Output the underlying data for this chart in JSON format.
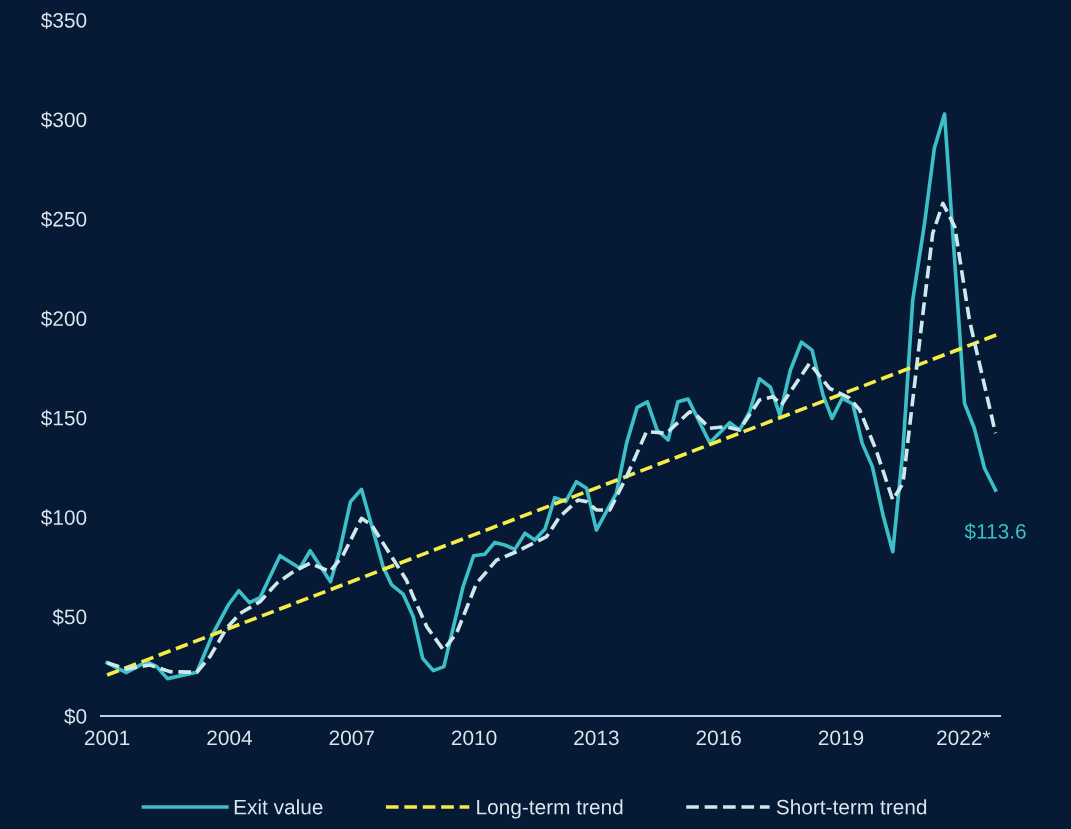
{
  "chart_data": {
    "type": "line",
    "xlim": [
      2000.85,
      2022.9
    ],
    "ylim": [
      0,
      350
    ],
    "xticks": [
      2001,
      2004,
      2007,
      2010,
      2013,
      2016,
      2019,
      {
        "value": 2022,
        "label": "2022*"
      }
    ],
    "yticks": [
      {
        "value": 0,
        "label": "$0"
      },
      {
        "value": 50,
        "label": "$50"
      },
      {
        "value": 100,
        "label": "$100"
      },
      {
        "value": 150,
        "label": "$150"
      },
      {
        "value": 200,
        "label": "$200"
      },
      {
        "value": 250,
        "label": "$250"
      },
      {
        "value": 300,
        "label": "$300"
      },
      {
        "value": 350,
        "label": "$350"
      }
    ],
    "grid": false,
    "legend": "bottom",
    "marker": "none",
    "series": [
      {
        "name": "Exit value",
        "color": "#3cbfc6",
        "line_style": "solid",
        "x": [
          2001.0,
          2001.47,
          2001.97,
          2002.22,
          2002.48,
          2003.2,
          2003.6,
          2003.97,
          2004.23,
          2004.49,
          2004.75,
          2005.24,
          2005.73,
          2005.98,
          2006.48,
          2006.71,
          2006.97,
          2007.24,
          2007.77,
          2007.98,
          2008.26,
          2008.51,
          2008.74,
          2009.0,
          2009.26,
          2009.73,
          2009.99,
          2010.26,
          2010.51,
          2010.75,
          2011.0,
          2011.25,
          2011.49,
          2011.74,
          2011.98,
          2012.25,
          2012.51,
          2012.76,
          2013.0,
          2013.49,
          2013.74,
          2014.0,
          2014.25,
          2014.49,
          2014.76,
          2015.0,
          2015.25,
          2015.78,
          2016.27,
          2016.51,
          2016.76,
          2017.0,
          2017.27,
          2017.5,
          2017.76,
          2018.03,
          2018.29,
          2018.56,
          2018.78,
          2019.03,
          2019.29,
          2019.52,
          2019.77,
          2020.03,
          2020.27,
          2020.52,
          2020.76,
          2021.05,
          2021.29,
          2021.54,
          2022.03,
          2022.27,
          2022.52,
          2022.79
        ],
        "values": [
          26.8,
          21.8,
          27.3,
          24.8,
          18.8,
          22,
          41.6,
          55.8,
          63,
          57,
          59.5,
          80.6,
          74.3,
          83.1,
          67.5,
          83.5,
          107.8,
          114,
          75.1,
          65.9,
          61.3,
          49.9,
          29,
          22.8,
          24.8,
          65,
          80.6,
          81.3,
          87.3,
          86,
          83.8,
          91.9,
          88.5,
          94,
          109.8,
          107.8,
          117.8,
          114.5,
          93.5,
          112,
          137.1,
          155.2,
          158,
          143.8,
          138.8,
          158,
          159.4,
          137.4,
          147.5,
          143.8,
          153,
          169.6,
          165.3,
          151.4,
          174,
          188,
          184,
          161.4,
          149.7,
          159.8,
          156.9,
          137.1,
          125.4,
          101.1,
          82.6,
          133.8,
          209.2,
          247.8,
          285.5,
          302.7,
          157.2,
          144.7,
          124.6,
          113.6
        ]
      },
      {
        "name": "Long-term trend",
        "color": "#f5ec47",
        "line_style": "dashed",
        "x": [
          2001.0,
          2022.81
        ],
        "values": [
          20.6,
          191.6
        ]
      },
      {
        "name": "Short-term trend",
        "color": "#cde9ec",
        "line_style": "dashed",
        "x": [
          2001.0,
          2001.48,
          2002.05,
          2002.54,
          2003.2,
          2003.52,
          2003.93,
          2004.26,
          2004.75,
          2005.16,
          2005.57,
          2005.98,
          2006.47,
          2006.79,
          2007.24,
          2007.49,
          2007.85,
          2008.34,
          2008.51,
          2008.84,
          2009.25,
          2009.57,
          2010.06,
          2010.55,
          2011.04,
          2011.45,
          2011.78,
          2012.1,
          2012.55,
          2012.76,
          2013.0,
          2013.33,
          2013.74,
          2014.23,
          2014.72,
          2015.29,
          2015.45,
          2015.78,
          2016.19,
          2016.51,
          2017.0,
          2017.33,
          2017.54,
          2018.23,
          2018.72,
          2019.21,
          2019.46,
          2019.86,
          2020.27,
          2020.52,
          2021.0,
          2021.25,
          2021.5,
          2021.79,
          2022.15,
          2022.79
        ],
        "values": [
          26.8,
          23.6,
          25.6,
          22.3,
          22,
          29.8,
          44.1,
          51.6,
          57.5,
          66.7,
          72.6,
          76.8,
          72.6,
          81,
          99.4,
          96,
          84.3,
          68.4,
          60,
          44.9,
          33.2,
          41.6,
          66.7,
          78.4,
          82.6,
          86.8,
          90.2,
          100.2,
          108.6,
          107.8,
          103.6,
          103.6,
          120.3,
          143,
          142.2,
          153,
          151.4,
          144.7,
          145.5,
          143.8,
          158.9,
          160.6,
          156.4,
          177.4,
          164.8,
          159.8,
          153.9,
          133.8,
          108.6,
          117,
          200.8,
          242.7,
          257.8,
          246,
          199.1,
          142.2
        ]
      }
    ],
    "annotations": [
      {
        "text": "$113.6",
        "x": 2022.79,
        "y": 113.6
      }
    ]
  }
}
